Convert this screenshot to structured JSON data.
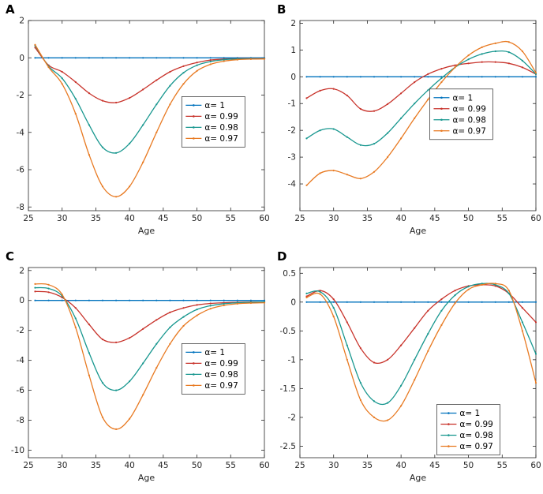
{
  "chart_data": [
    {
      "type": "line",
      "panel": "A",
      "xlabel": "Age",
      "xlim": [
        25,
        60
      ],
      "ylim": [
        -8.2,
        2.0
      ],
      "xticks": [
        25,
        30,
        35,
        40,
        45,
        50,
        55,
        60
      ],
      "yticks": [
        -8,
        -6,
        -4,
        -2,
        0,
        2
      ],
      "legend": {
        "x": 0.65,
        "y": 0.4,
        "position": "middle-right"
      },
      "x": [
        26,
        28,
        30,
        32,
        34,
        36,
        38,
        40,
        42,
        44,
        46,
        48,
        50,
        52,
        54,
        56,
        58,
        60
      ],
      "series": [
        {
          "name": "α= 1",
          "color": "#0072BD",
          "values": [
            0,
            0,
            0,
            0,
            0,
            0,
            0,
            0,
            0,
            0,
            0,
            0,
            0,
            0,
            0,
            0,
            0,
            0
          ]
        },
        {
          "name": "α= 0.99",
          "color": "#C8332B",
          "values": [
            0.55,
            -0.4,
            -0.75,
            -1.3,
            -1.9,
            -2.3,
            -2.4,
            -2.15,
            -1.7,
            -1.2,
            -0.75,
            -0.45,
            -0.25,
            -0.12,
            -0.07,
            -0.05,
            -0.04,
            -0.04
          ]
        },
        {
          "name": "α= 0.98",
          "color": "#18978F",
          "values": [
            0.65,
            -0.45,
            -1.1,
            -2.2,
            -3.6,
            -4.8,
            -5.1,
            -4.6,
            -3.6,
            -2.5,
            -1.5,
            -0.8,
            -0.4,
            -0.2,
            -0.1,
            -0.06,
            -0.05,
            -0.05
          ]
        },
        {
          "name": "α= 0.97",
          "color": "#E87A22",
          "values": [
            0.7,
            -0.5,
            -1.4,
            -3.0,
            -5.2,
            -6.9,
            -7.45,
            -6.9,
            -5.6,
            -4.0,
            -2.5,
            -1.4,
            -0.7,
            -0.35,
            -0.18,
            -0.1,
            -0.07,
            -0.06
          ]
        }
      ]
    },
    {
      "type": "line",
      "panel": "B",
      "xlabel": "Age",
      "xlim": [
        25,
        60
      ],
      "ylim": [
        -5.0,
        2.1
      ],
      "xticks": [
        25,
        30,
        35,
        40,
        45,
        50,
        55,
        60
      ],
      "yticks": [
        -4,
        -3,
        -2,
        -1,
        0,
        1,
        2
      ],
      "legend": {
        "x": 0.55,
        "y": 0.36,
        "position": "middle-right"
      },
      "x": [
        26,
        28,
        30,
        32,
        34,
        36,
        38,
        40,
        42,
        44,
        46,
        48,
        50,
        52,
        54,
        56,
        58,
        60
      ],
      "series": [
        {
          "name": "α= 1",
          "color": "#0072BD",
          "values": [
            0,
            0,
            0,
            0,
            0,
            0,
            0,
            0,
            0,
            0,
            0,
            0,
            0,
            0,
            0,
            0,
            0,
            0
          ]
        },
        {
          "name": "α= 0.99",
          "color": "#C8332B",
          "values": [
            -0.8,
            -0.52,
            -0.45,
            -0.7,
            -1.2,
            -1.28,
            -1.02,
            -0.62,
            -0.2,
            0.1,
            0.3,
            0.43,
            0.5,
            0.55,
            0.55,
            0.5,
            0.35,
            0.1
          ]
        },
        {
          "name": "α= 0.98",
          "color": "#18978F",
          "values": [
            -2.3,
            -2.0,
            -1.95,
            -2.25,
            -2.55,
            -2.5,
            -2.1,
            -1.55,
            -1.0,
            -0.5,
            -0.05,
            0.35,
            0.65,
            0.85,
            0.95,
            0.92,
            0.6,
            0.1
          ]
        },
        {
          "name": "α= 0.97",
          "color": "#E87A22",
          "values": [
            -4.05,
            -3.6,
            -3.5,
            -3.65,
            -3.8,
            -3.55,
            -3.0,
            -2.3,
            -1.55,
            -0.85,
            -0.2,
            0.35,
            0.8,
            1.1,
            1.25,
            1.3,
            0.95,
            0.15
          ]
        }
      ]
    },
    {
      "type": "line",
      "panel": "C",
      "xlabel": "Age",
      "xlim": [
        25,
        60
      ],
      "ylim": [
        -10.5,
        2.2
      ],
      "xticks": [
        25,
        30,
        35,
        40,
        45,
        50,
        55,
        60
      ],
      "yticks": [
        -10,
        -8,
        -6,
        -4,
        -2,
        0,
        2
      ],
      "legend": {
        "x": 0.65,
        "y": 0.4,
        "position": "middle-right"
      },
      "x": [
        26,
        28,
        30,
        32,
        34,
        36,
        38,
        40,
        42,
        44,
        46,
        48,
        50,
        52,
        54,
        56,
        58,
        60
      ],
      "series": [
        {
          "name": "α= 1",
          "color": "#0072BD",
          "values": [
            0,
            0,
            0,
            0,
            0,
            0,
            0,
            0,
            0,
            0,
            0,
            0,
            0,
            0,
            0,
            0,
            0,
            0
          ]
        },
        {
          "name": "α= 0.99",
          "color": "#C8332B",
          "values": [
            0.6,
            0.55,
            0.2,
            -0.5,
            -1.6,
            -2.6,
            -2.8,
            -2.5,
            -1.9,
            -1.3,
            -0.8,
            -0.5,
            -0.3,
            -0.2,
            -0.15,
            -0.12,
            -0.1,
            -0.1
          ]
        },
        {
          "name": "α= 0.98",
          "color": "#18978F",
          "values": [
            0.85,
            0.8,
            0.3,
            -1.2,
            -3.5,
            -5.5,
            -6.0,
            -5.4,
            -4.2,
            -2.9,
            -1.8,
            -1.1,
            -0.6,
            -0.35,
            -0.22,
            -0.15,
            -0.12,
            -0.1
          ]
        },
        {
          "name": "α= 0.97",
          "color": "#E87A22",
          "values": [
            1.1,
            1.05,
            0.4,
            -1.8,
            -5.0,
            -7.8,
            -8.6,
            -7.9,
            -6.3,
            -4.5,
            -2.9,
            -1.7,
            -1.0,
            -0.55,
            -0.33,
            -0.22,
            -0.17,
            -0.15
          ]
        }
      ]
    },
    {
      "type": "line",
      "panel": "D",
      "xlabel": "Age",
      "xlim": [
        25,
        60
      ],
      "ylim": [
        -2.7,
        0.6
      ],
      "xticks": [
        25,
        30,
        35,
        40,
        45,
        50,
        55,
        60
      ],
      "yticks": [
        -2.5,
        -2,
        -1.5,
        -1,
        -0.5,
        0,
        0.5
      ],
      "legend": {
        "x": 0.58,
        "y": 0.72,
        "position": "bottom-right"
      },
      "x": [
        26,
        28,
        30,
        32,
        34,
        36,
        38,
        40,
        42,
        44,
        46,
        48,
        50,
        52,
        54,
        56,
        58,
        60
      ],
      "series": [
        {
          "name": "α= 1",
          "color": "#0072BD",
          "values": [
            0,
            0,
            0,
            0,
            0,
            0,
            0,
            0,
            0,
            0,
            0,
            0,
            0,
            0,
            0,
            0,
            0,
            0
          ]
        },
        {
          "name": "α= 0.99",
          "color": "#C8332B",
          "values": [
            0.1,
            0.2,
            0.05,
            -0.35,
            -0.8,
            -1.05,
            -1.0,
            -0.75,
            -0.45,
            -0.15,
            0.05,
            0.2,
            0.28,
            0.3,
            0.28,
            0.15,
            -0.1,
            -0.35
          ]
        },
        {
          "name": "α= 0.98",
          "color": "#18978F",
          "values": [
            0.15,
            0.18,
            -0.1,
            -0.75,
            -1.4,
            -1.72,
            -1.75,
            -1.45,
            -1.0,
            -0.55,
            -0.15,
            0.12,
            0.27,
            0.32,
            0.3,
            0.15,
            -0.35,
            -0.9
          ]
        },
        {
          "name": "α= 0.97",
          "color": "#E87A22",
          "values": [
            0.08,
            0.14,
            -0.25,
            -1.0,
            -1.7,
            -2.0,
            -2.05,
            -1.8,
            -1.35,
            -0.85,
            -0.4,
            -0.02,
            0.22,
            0.3,
            0.32,
            0.2,
            -0.5,
            -1.4
          ]
        }
      ]
    }
  ]
}
